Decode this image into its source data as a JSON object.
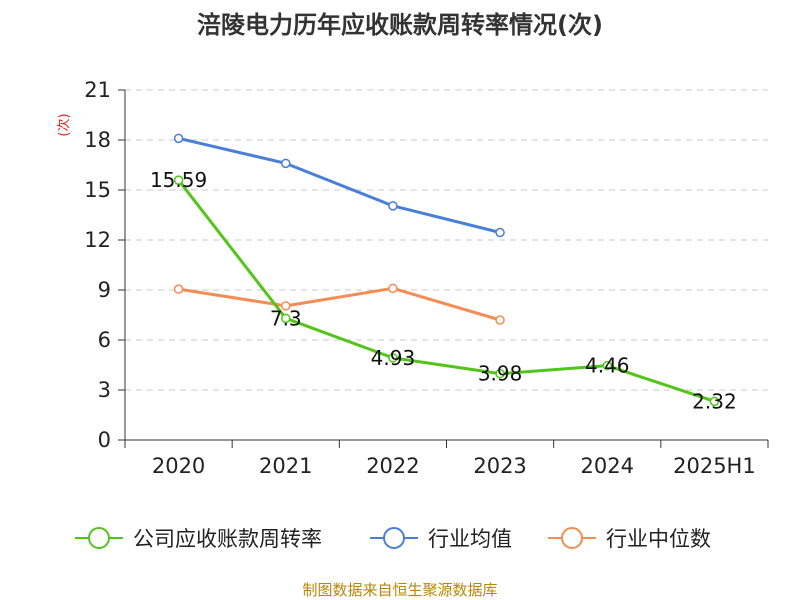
{
  "chart_data": {
    "type": "line",
    "title": "涪陵电力历年应收账款周转率情况(次)",
    "ylabel": "(次)",
    "xlabel": "",
    "categories": [
      "2020",
      "2021",
      "2022",
      "2023",
      "2024",
      "2025H1"
    ],
    "ylim": [
      0,
      21
    ],
    "yticks": [
      0,
      3,
      6,
      9,
      12,
      15,
      18,
      21
    ],
    "grid": true,
    "legend_position": "bottom",
    "series": [
      {
        "name": "公司应收账款周转率",
        "color": "#52c41a",
        "values": [
          15.59,
          7.3,
          4.93,
          3.98,
          4.46,
          2.32
        ],
        "labels": [
          "15.59",
          "7.3",
          "4.93",
          "3.98",
          "4.46",
          "2.32"
        ]
      },
      {
        "name": "行业均值",
        "color": "#4a7fd8",
        "values": [
          18.1,
          16.6,
          14.05,
          12.45,
          null,
          null
        ]
      },
      {
        "name": "行业中位数",
        "color": "#f58c55",
        "values": [
          9.05,
          8.05,
          9.1,
          7.2,
          null,
          null
        ]
      }
    ],
    "source": "制图数据来自恒生聚源数据库"
  }
}
